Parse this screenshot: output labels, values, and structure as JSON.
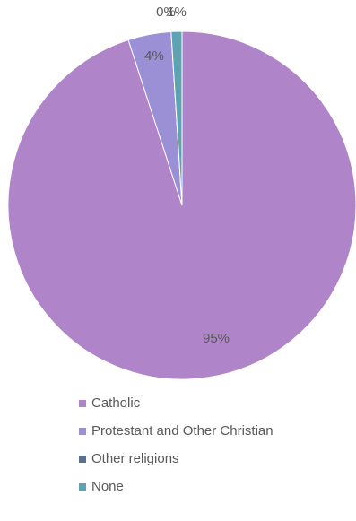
{
  "chart_data": {
    "type": "pie",
    "title": "",
    "categories": [
      "Catholic",
      "Protestant and Other Christian",
      "Other religions",
      "None"
    ],
    "values": [
      95,
      4,
      0,
      1
    ],
    "data_labels": [
      "95%",
      "4%",
      "0%",
      "1%"
    ],
    "colors": [
      "#b084c9",
      "#9b8fd6",
      "#5a7090",
      "#5fa3b3"
    ],
    "legend_placement": "bottom"
  }
}
